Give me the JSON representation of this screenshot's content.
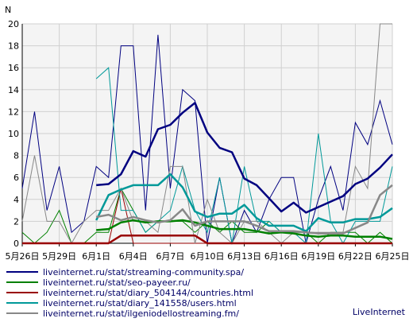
{
  "chart_data": {
    "type": "line",
    "y_unit_label": "N",
    "ylim": [
      0,
      20
    ],
    "y_ticks": [
      0,
      2,
      4,
      6,
      8,
      10,
      12,
      14,
      16,
      18,
      20
    ],
    "grid": true,
    "x_tick_labels": [
      "5月26日",
      "5月29日",
      "6月1日",
      "6月4日",
      "6月7日",
      "6月10日",
      "6月13日",
      "6月16日",
      "6月19日",
      "6月22日",
      "6月25日"
    ],
    "x": [
      "5月26日",
      "5月27日",
      "5月28日",
      "5月29日",
      "5月30日",
      "5月31日",
      "6月1日",
      "6月2日",
      "6月3日",
      "6月4日",
      "6月5日",
      "6月6日",
      "6月7日",
      "6月8日",
      "6月9日",
      "6月10日",
      "6月11日",
      "6月12日",
      "6月13日",
      "6月14日",
      "6月15日",
      "6月16日",
      "6月17日",
      "6月18日",
      "6月19日",
      "6月20日",
      "6月21日",
      "6月22日",
      "6月23日",
      "6月24日",
      "6月25日"
    ],
    "series": [
      {
        "name": "liveinternet.ru/stat/streaming-community.spa/",
        "color": "#000080",
        "values": [
          5,
          12,
          3,
          7,
          1,
          2,
          7,
          6,
          18,
          18,
          3,
          19,
          5,
          14,
          13,
          0,
          6,
          0,
          3,
          1,
          4,
          6,
          6,
          0,
          4,
          7,
          3,
          11,
          9,
          13,
          9
        ],
        "avg_values": [
          null,
          null,
          null,
          null,
          null,
          null,
          5.3,
          5.4,
          6.3,
          8.4,
          7.9,
          10.4,
          10.8,
          11.9,
          12.8,
          10.1,
          8.7,
          8.3,
          5.9,
          5.3,
          4.1,
          2.9,
          3.7,
          2.8,
          3.3,
          3.8,
          4.3,
          5.4,
          5.9,
          6.9,
          8.1
        ]
      },
      {
        "name": "liveinternet.ru/stat/seo-payeer.ru/",
        "color": "#008000",
        "values": [
          1,
          0,
          1,
          3,
          0,
          0,
          1,
          1,
          5,
          3,
          1,
          2,
          2,
          2,
          1,
          2,
          1,
          2,
          1,
          1,
          2,
          1,
          1,
          1,
          0,
          1,
          1,
          1,
          0,
          1,
          0
        ],
        "avg_values": [
          null,
          null,
          null,
          null,
          null,
          null,
          1.2,
          1.3,
          1.9,
          2.1,
          1.9,
          2.0,
          2.0,
          2.1,
          1.9,
          1.6,
          1.3,
          1.3,
          1.3,
          1.1,
          0.9,
          1.0,
          0.9,
          0.7,
          0.6,
          0.7,
          0.7,
          0.6,
          0.6,
          0.6,
          0.4
        ]
      },
      {
        "name": "liveinternet.ru/stat/diary_504144/countries.html",
        "color": "#990000",
        "values": [
          0,
          0,
          0,
          0,
          0,
          0,
          0,
          0,
          5,
          0,
          0,
          0,
          0,
          0,
          0,
          0,
          0,
          0,
          0,
          0,
          0,
          0,
          0,
          0,
          0,
          0,
          0,
          0,
          0,
          0,
          0
        ],
        "avg_values": [
          0,
          0,
          0,
          0,
          0,
          0,
          0,
          0,
          0.7,
          0.7,
          0.7,
          0.7,
          0.7,
          0.7,
          0.7,
          0,
          0,
          0,
          0,
          0,
          0,
          0,
          0,
          0,
          0,
          0,
          0,
          0,
          0,
          0,
          0
        ]
      },
      {
        "name": "liveinternet.ru/stat/diary_141558/users.html",
        "color": "#009999",
        "values": [
          null,
          null,
          null,
          null,
          null,
          null,
          15,
          16,
          3,
          3,
          1,
          2,
          3,
          7,
          3,
          1,
          6,
          0,
          7,
          2,
          2,
          1,
          1,
          0,
          10,
          2,
          0,
          2,
          2,
          2,
          7
        ],
        "avg_values": [
          null,
          null,
          null,
          null,
          null,
          null,
          2.1,
          4.4,
          4.9,
          5.3,
          5.3,
          5.3,
          6.3,
          5.1,
          2.9,
          2.4,
          2.7,
          2.7,
          3.5,
          2.3,
          1.6,
          1.6,
          1.6,
          1.1,
          2.3,
          1.9,
          1.9,
          2.2,
          2.2,
          2.4,
          3.2
        ]
      },
      {
        "name": "liveinternet.ru/stat/ilgeniodellostreaming.fm/",
        "color": "#888888",
        "values": [
          2,
          8,
          2,
          2,
          0,
          2,
          3,
          3,
          5,
          2,
          2,
          1,
          7,
          7,
          0,
          4,
          1,
          0,
          2,
          2,
          1,
          0,
          1,
          1,
          1,
          1,
          1,
          7,
          5,
          20,
          20
        ],
        "avg_values": [
          null,
          null,
          null,
          null,
          null,
          null,
          2.4,
          2.6,
          2.1,
          2.4,
          2.1,
          1.9,
          2.1,
          3.1,
          1.6,
          2.0,
          2.0,
          2.0,
          2.0,
          1.6,
          1.1,
          1.1,
          1.1,
          1.0,
          0.9,
          0.9,
          0.9,
          1.4,
          1.9,
          4.4,
          5.3
        ]
      }
    ]
  },
  "watermark": "LiveInternet"
}
